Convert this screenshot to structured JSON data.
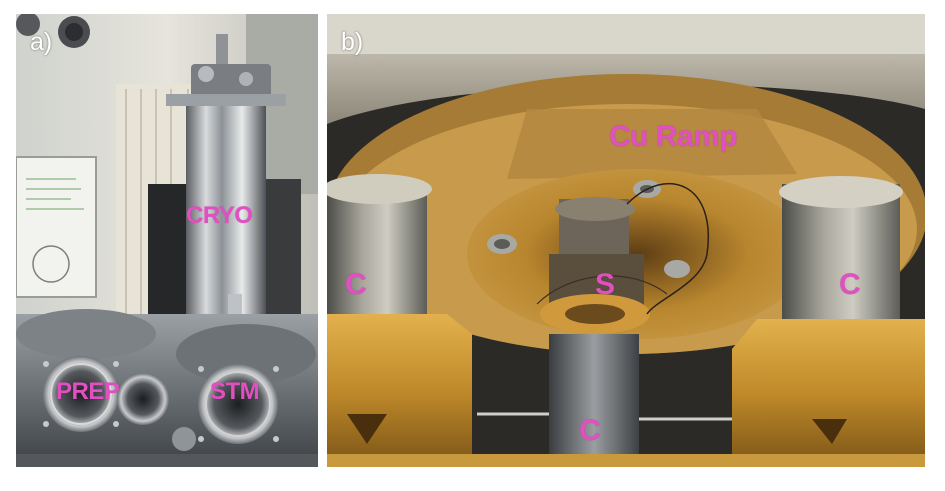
{
  "figure": {
    "panels": [
      {
        "letter": "a)",
        "description_labels": {
          "cryo": "CRYO",
          "prep": "PREP",
          "stm": "STM"
        }
      },
      {
        "letter": "b)",
        "description_labels": {
          "cu_ramp": "Cu Ramp",
          "c_left": "C",
          "c_right": "C",
          "c_bottom": "C",
          "s": "S"
        }
      }
    ]
  },
  "colors": {
    "label_magenta": "#e050c0",
    "letter_white": "#ffffff"
  }
}
